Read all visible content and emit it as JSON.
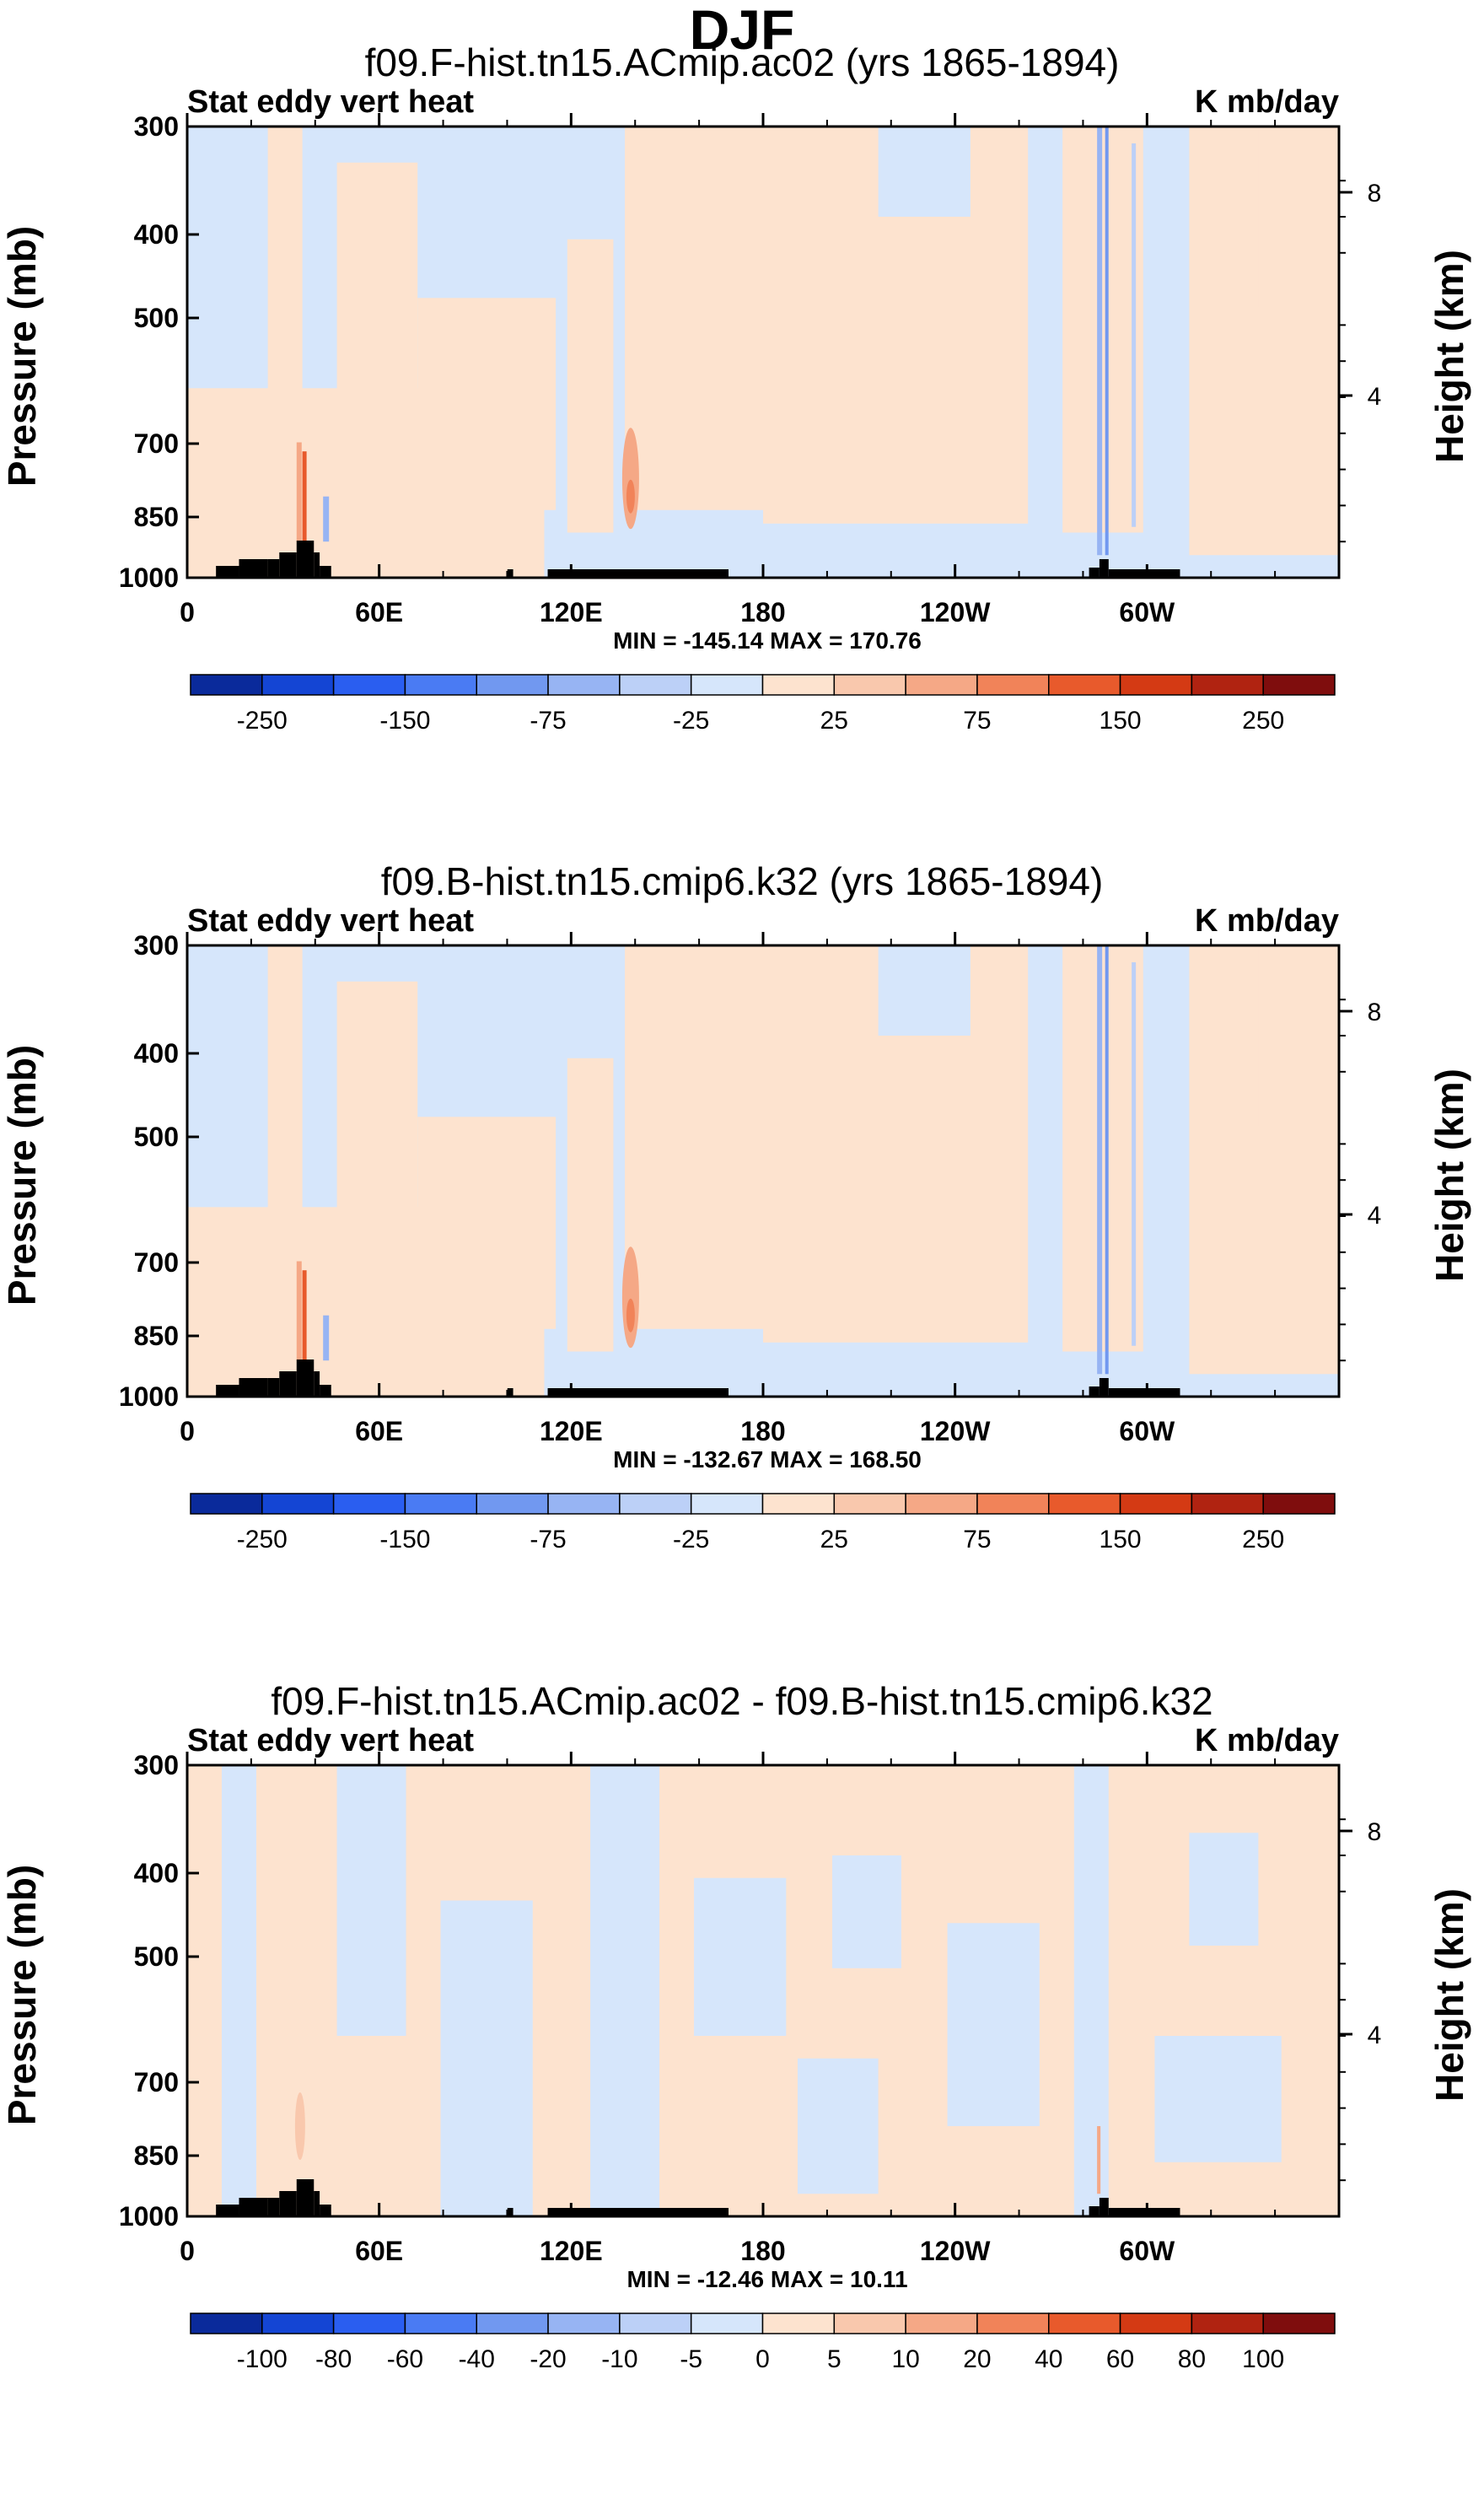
{
  "figure_title": "DJF",
  "colors": {
    "cool": [
      "#0a2a9b",
      "#1445d4",
      "#2a5ef0",
      "#4a7bf3",
      "#7198f0",
      "#97b4f3",
      "#bcd0f7",
      "#d6e6fb"
    ],
    "warm": [
      "#fde3cf",
      "#f9c8ad",
      "#f5a886",
      "#f18359",
      "#e85a2c",
      "#d43a14",
      "#b02311",
      "#7f0d0d"
    ],
    "land": "#000000"
  },
  "chart_data": [
    {
      "type": "heatmap",
      "title": "f09.F-hist.tn15.ACmip.ac02 (yrs 1865-1894)",
      "left_label": "Stat eddy vert heat",
      "right_label": "K mb/day",
      "ylabel": "Pressure (mb)",
      "ylabel_right": "Height (km)",
      "x_ticks": [
        "0",
        "60E",
        "120E",
        "180",
        "120W",
        "60W"
      ],
      "y_ticks": [
        "300",
        "400",
        "500",
        "700",
        "850",
        "1000"
      ],
      "y2_ticks": [
        "8",
        "4"
      ],
      "stats": "MIN = -145.14   MAX = 170.76",
      "colorbar_ticks": [
        "-250",
        "-150",
        "-75",
        "-25",
        "25",
        "75",
        "150",
        "250"
      ],
      "colorbar_ticks_count_per_box": 16
    },
    {
      "type": "heatmap",
      "title": "f09.B-hist.tn15.cmip6.k32 (yrs 1865-1894)",
      "left_label": "Stat eddy vert heat",
      "right_label": "K mb/day",
      "ylabel": "Pressure (mb)",
      "ylabel_right": "Height (km)",
      "x_ticks": [
        "0",
        "60E",
        "120E",
        "180",
        "120W",
        "60W"
      ],
      "y_ticks": [
        "300",
        "400",
        "500",
        "700",
        "850",
        "1000"
      ],
      "y2_ticks": [
        "8",
        "4"
      ],
      "stats": "MIN = -132.67   MAX = 168.50",
      "colorbar_ticks": [
        "-250",
        "-150",
        "-75",
        "-25",
        "25",
        "75",
        "150",
        "250"
      ],
      "colorbar_ticks_count_per_box": 16
    },
    {
      "type": "heatmap",
      "title": "f09.F-hist.tn15.ACmip.ac02 - f09.B-hist.tn15.cmip6.k32",
      "left_label": "Stat eddy vert heat",
      "right_label": "K mb/day",
      "ylabel": "Pressure (mb)",
      "ylabel_right": "Height (km)",
      "x_ticks": [
        "0",
        "60E",
        "120E",
        "180",
        "120W",
        "60W"
      ],
      "y_ticks": [
        "300",
        "400",
        "500",
        "700",
        "850",
        "1000"
      ],
      "y2_ticks": [
        "8",
        "4"
      ],
      "stats": "MIN = -12.46   MAX = 10.11",
      "colorbar_ticks": [
        "-100",
        "-80",
        "-60",
        "-40",
        "-20",
        "-10",
        "-5",
        "0",
        "5",
        "10",
        "20",
        "40",
        "60",
        "80",
        "100"
      ],
      "colorbar_ticks_count_per_box": 16
    }
  ]
}
